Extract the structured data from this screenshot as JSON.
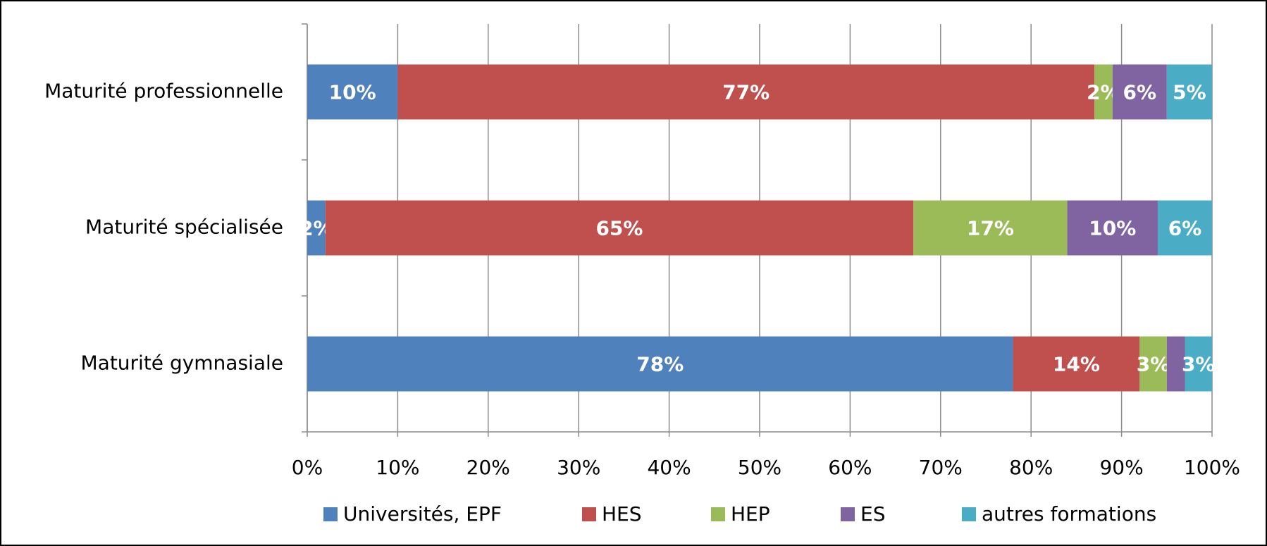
{
  "chart_data": {
    "type": "stacked_barh",
    "categories": [
      "Maturité professionnelle",
      "Maturité spécialisée",
      "Maturité gymnasiale"
    ],
    "series": [
      {
        "name": "Universités, EPF",
        "color": "#4f81bd",
        "values": [
          10,
          2,
          78
        ],
        "value_labels": [
          "10%",
          "2%",
          "78%"
        ]
      },
      {
        "name": "HES",
        "color": "#c0504d",
        "values": [
          77,
          65,
          14
        ],
        "value_labels": [
          "77%",
          "65%",
          "14%"
        ]
      },
      {
        "name": "HEP",
        "color": "#9bbb59",
        "values": [
          2,
          17,
          3
        ],
        "value_labels": [
          "2%",
          "17%",
          "3%"
        ]
      },
      {
        "name": "ES",
        "color": "#8064a2",
        "values": [
          6,
          10,
          2
        ],
        "value_labels": [
          "6%",
          "10%",
          null
        ]
      },
      {
        "name": "autres formations",
        "color": "#4bacc6",
        "values": [
          5,
          6,
          3
        ],
        "value_labels": [
          "5%",
          "6%",
          "3%"
        ]
      }
    ],
    "xlim": [
      0,
      100
    ],
    "xticks": [
      {
        "value": 0,
        "label": "0%"
      },
      {
        "value": 10,
        "label": "10%"
      },
      {
        "value": 20,
        "label": "20%"
      },
      {
        "value": 30,
        "label": "30%"
      },
      {
        "value": 40,
        "label": "40%"
      },
      {
        "value": 50,
        "label": "50%"
      },
      {
        "value": 60,
        "label": "60%"
      },
      {
        "value": 70,
        "label": "70%"
      },
      {
        "value": 80,
        "label": "80%"
      },
      {
        "value": 90,
        "label": "90%"
      },
      {
        "value": 100,
        "label": "100%"
      }
    ],
    "grid": true,
    "legend": "bottom"
  }
}
